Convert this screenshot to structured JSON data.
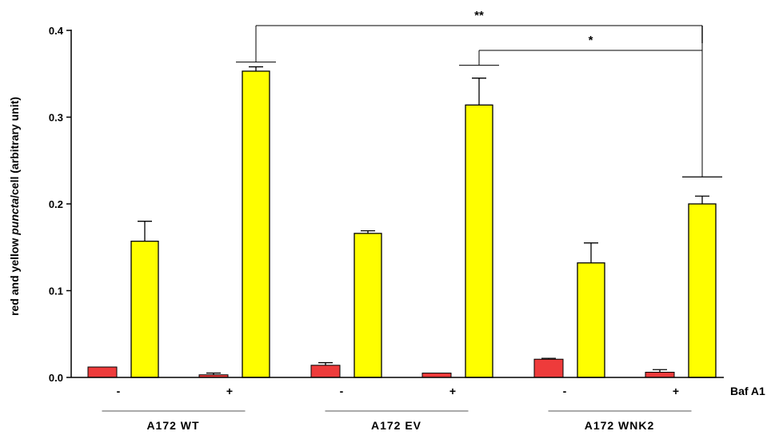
{
  "chart_data": {
    "type": "bar",
    "ylabel_parts": [
      "red and yellow ",
      "puncta",
      "/cell (arbitrary unit)"
    ],
    "ylim": [
      0,
      0.4
    ],
    "yticks": [
      "0.0",
      "0.1",
      "0.2",
      "0.3",
      "0.4"
    ],
    "treatment_label": "Baf A1",
    "groups": [
      {
        "name": "A172 WT",
        "conditions": [
          {
            "treatment": "-",
            "red": 0.012,
            "red_err": 0,
            "yellow": 0.157,
            "yellow_err": 0.023
          },
          {
            "treatment": "+",
            "red": 0.003,
            "red_err": 0.002,
            "yellow": 0.353,
            "yellow_err": 0.005
          }
        ]
      },
      {
        "name": "A172 EV",
        "conditions": [
          {
            "treatment": "-",
            "red": 0.014,
            "red_err": 0.003,
            "yellow": 0.166,
            "yellow_err": 0.003
          },
          {
            "treatment": "+",
            "red": 0.005,
            "red_err": 0,
            "yellow": 0.314,
            "yellow_err": 0.031
          }
        ]
      },
      {
        "name": "A172 WNK2",
        "conditions": [
          {
            "treatment": "-",
            "red": 0.021,
            "red_err": 0.001,
            "yellow": 0.132,
            "yellow_err": 0.023
          },
          {
            "treatment": "+",
            "red": 0.006,
            "red_err": 0.003,
            "yellow": 0.2,
            "yellow_err": 0.009
          }
        ]
      }
    ],
    "significance": [
      {
        "label": "**",
        "from": "A172 WT +",
        "to": "A172 WNK2 +"
      },
      {
        "label": "*",
        "from": "A172 EV +",
        "to": "A172 WNK2 +"
      }
    ],
    "colors": {
      "red": "#ee3b3b",
      "yellow": "#ffff00",
      "stroke": "#000000"
    },
    "grid": false
  }
}
